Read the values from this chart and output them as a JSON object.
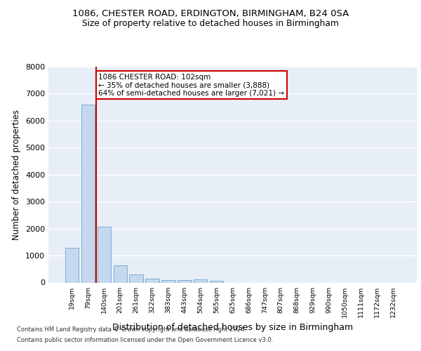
{
  "title1": "1086, CHESTER ROAD, ERDINGTON, BIRMINGHAM, B24 0SA",
  "title2": "Size of property relative to detached houses in Birmingham",
  "xlabel": "Distribution of detached houses by size in Birmingham",
  "ylabel": "Number of detached properties",
  "categories": [
    "19sqm",
    "79sqm",
    "140sqm",
    "201sqm",
    "261sqm",
    "322sqm",
    "383sqm",
    "443sqm",
    "504sqm",
    "565sqm",
    "625sqm",
    "686sqm",
    "747sqm",
    "807sqm",
    "868sqm",
    "929sqm",
    "990sqm",
    "1050sqm",
    "1111sqm",
    "1172sqm",
    "1232sqm"
  ],
  "values": [
    1300,
    6600,
    2080,
    650,
    290,
    140,
    95,
    80,
    120,
    60,
    0,
    0,
    0,
    0,
    0,
    0,
    0,
    0,
    0,
    0,
    0
  ],
  "bar_color": "#c5d9ee",
  "bar_edge_color": "#7bafd4",
  "vline_x_index": 1.5,
  "vline_color": "#cc0000",
  "annotation_text": "1086 CHESTER ROAD: 102sqm\n← 35% of detached houses are smaller (3,888)\n64% of semi-detached houses are larger (7,021) →",
  "annotation_box_facecolor": "white",
  "annotation_box_edgecolor": "#cc0000",
  "ylim": [
    0,
    8000
  ],
  "yticks": [
    0,
    1000,
    2000,
    3000,
    4000,
    5000,
    6000,
    7000,
    8000
  ],
  "footnote1": "Contains HM Land Registry data © Crown copyright and database right 2024.",
  "footnote2": "Contains public sector information licensed under the Open Government Licence v3.0.",
  "plot_bg_color": "#e8eef7",
  "grid_color": "white",
  "fig_bg_color": "white"
}
